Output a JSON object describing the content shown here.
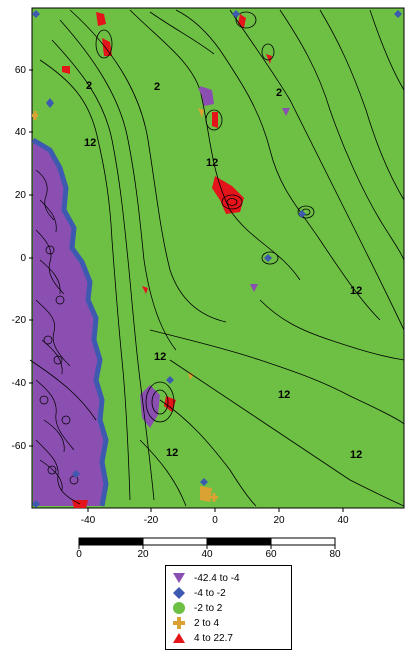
{
  "map": {
    "y_axis_labels": [
      "60",
      "40",
      "20",
      "0",
      "-20",
      "-40",
      "-60"
    ],
    "x_axis_labels": [
      "-40",
      "-20",
      "0",
      "20",
      "40"
    ],
    "contour_labels": [
      "2",
      "2",
      "2",
      "12",
      "12",
      "12",
      "12",
      "12",
      "12",
      "12"
    ],
    "colors": {
      "background": "#6dc043",
      "purple": "#8a4fb0",
      "blue": "#3d5ab0",
      "green": "#6dc043",
      "orange": "#d9a233",
      "red": "#e4141b",
      "contour": "#000000"
    }
  },
  "scale_bar": {
    "labels": [
      "0",
      "20",
      "40",
      "60",
      "80"
    ]
  },
  "legend": {
    "items": [
      {
        "symbol": "triangle-down-icon",
        "color": "#8a4fb0",
        "label": "-42.4  to  -4"
      },
      {
        "symbol": "diamond-icon",
        "color": "#3d5ab0",
        "label": "-4  to  -2"
      },
      {
        "symbol": "circle-icon",
        "color": "#6dc043",
        "label": "-2  to  2"
      },
      {
        "symbol": "cross-icon",
        "color": "#d9a233",
        "label": "2  to  4"
      },
      {
        "symbol": "triangle-up-icon",
        "color": "#e4141b",
        "label": "4  to  22.7"
      }
    ]
  }
}
